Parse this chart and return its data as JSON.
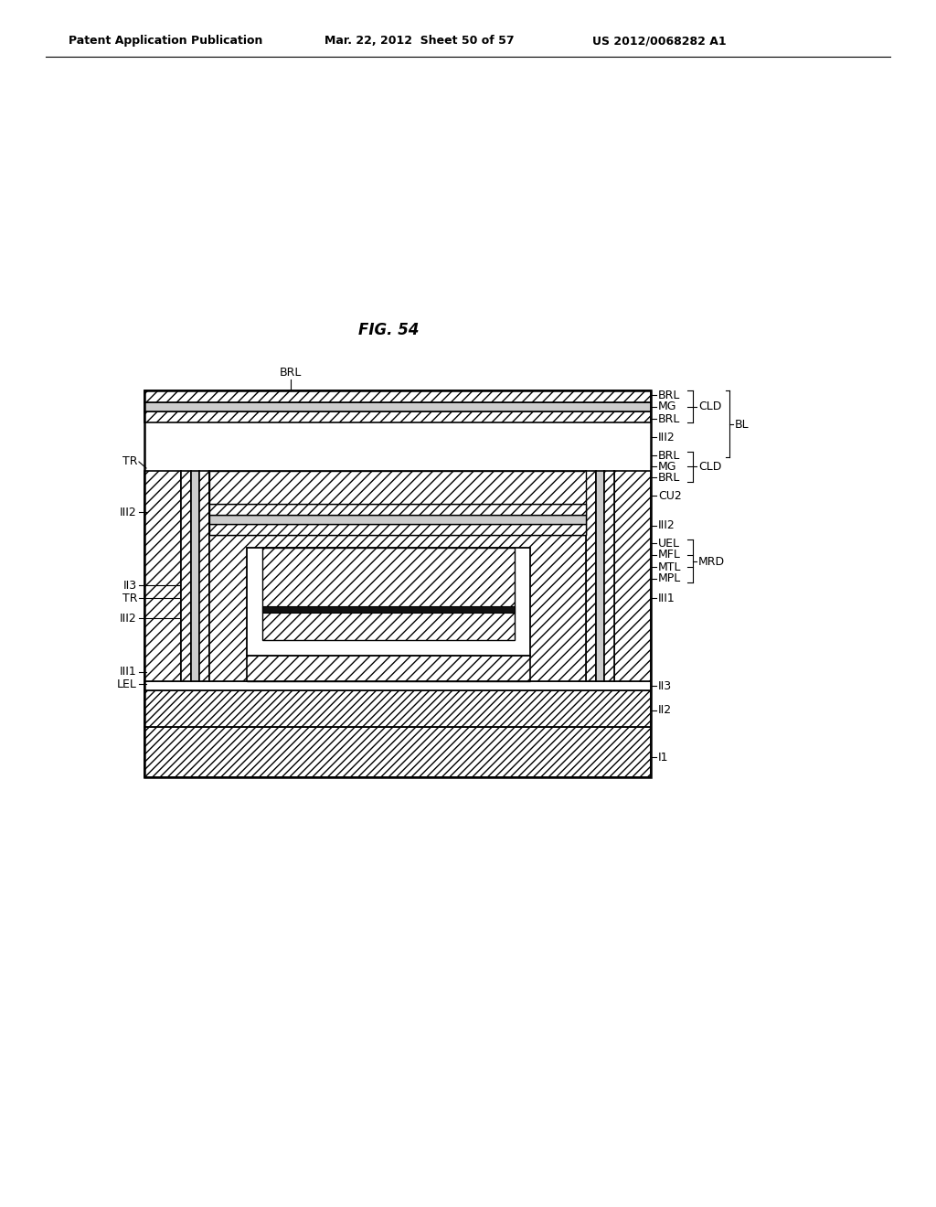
{
  "header_left": "Patent Application Publication",
  "header_center": "Mar. 22, 2012  Sheet 50 of 57",
  "header_right": "US 2012/0068282 A1",
  "fig_title": "FIG. 54",
  "bg_color": "#ffffff"
}
